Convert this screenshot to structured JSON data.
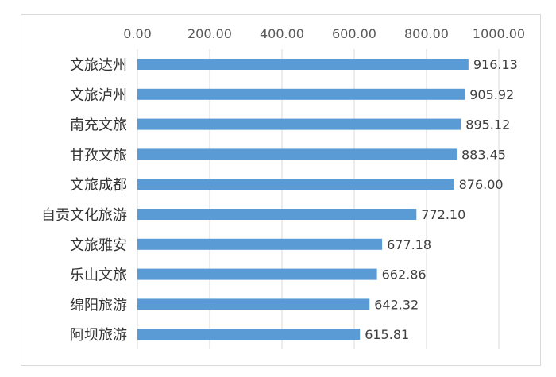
{
  "chart_data": {
    "type": "bar",
    "orientation": "horizontal",
    "categories": [
      "文旅达州",
      "文旅泸州",
      "南充文旅",
      "甘孜文旅",
      "文旅成都",
      "自贡文化旅游",
      "文旅雅安",
      "乐山文旅",
      "绵阳旅游",
      "阿坝旅游"
    ],
    "values": [
      916.13,
      905.92,
      895.12,
      883.45,
      876.0,
      772.1,
      677.18,
      662.86,
      642.32,
      615.81
    ],
    "value_labels": [
      "916.13",
      "905.92",
      "895.12",
      "883.45",
      "876.00",
      "772.10",
      "677.18",
      "662.86",
      "642.32",
      "615.81"
    ],
    "xlim": [
      0,
      1000
    ],
    "ticks": [
      "0.00",
      "200.00",
      "400.00",
      "600.00",
      "800.00",
      "1000.00"
    ],
    "tick_values": [
      0,
      200,
      400,
      600,
      800,
      1000
    ],
    "axis_position": "top",
    "grid": true,
    "bar_color": "#5b9bd5",
    "grid_color": "#d9d9d9",
    "title": "",
    "xlabel": "",
    "ylabel": ""
  }
}
